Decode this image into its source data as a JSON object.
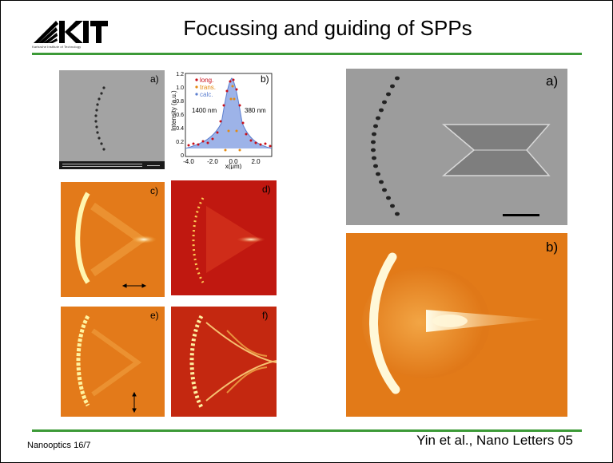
{
  "header": {
    "logo_text": "KIT",
    "logo_subtitle": "Karlsruhe Institute of Technology",
    "title": "Focussing and guiding of SPPs"
  },
  "panels": {
    "small_a": "a)",
    "small_b": "b)",
    "small_c": "c)",
    "small_d": "d)",
    "small_e": "e)",
    "small_f": "f)",
    "large_a": "a)",
    "large_b": "b)"
  },
  "plot_b": {
    "legend": [
      "long.",
      "trans.",
      "calc."
    ],
    "annot_left": "1400 nm",
    "annot_right": "380 nm",
    "ylabel": "Intensity (a.u.)",
    "xlabel": "x(μm)",
    "yticks": [
      "1.2",
      "1.0",
      "0.8",
      "0.6",
      "0.4",
      "0.2",
      "0"
    ],
    "xticks": [
      "-4.0",
      "-2.0",
      "0.0",
      "2.0"
    ]
  },
  "footer": {
    "left": "Nanooptics 16/7",
    "right": "Yin et al., Nano Letters 05"
  },
  "colors": {
    "accent": "#3c9a37"
  }
}
